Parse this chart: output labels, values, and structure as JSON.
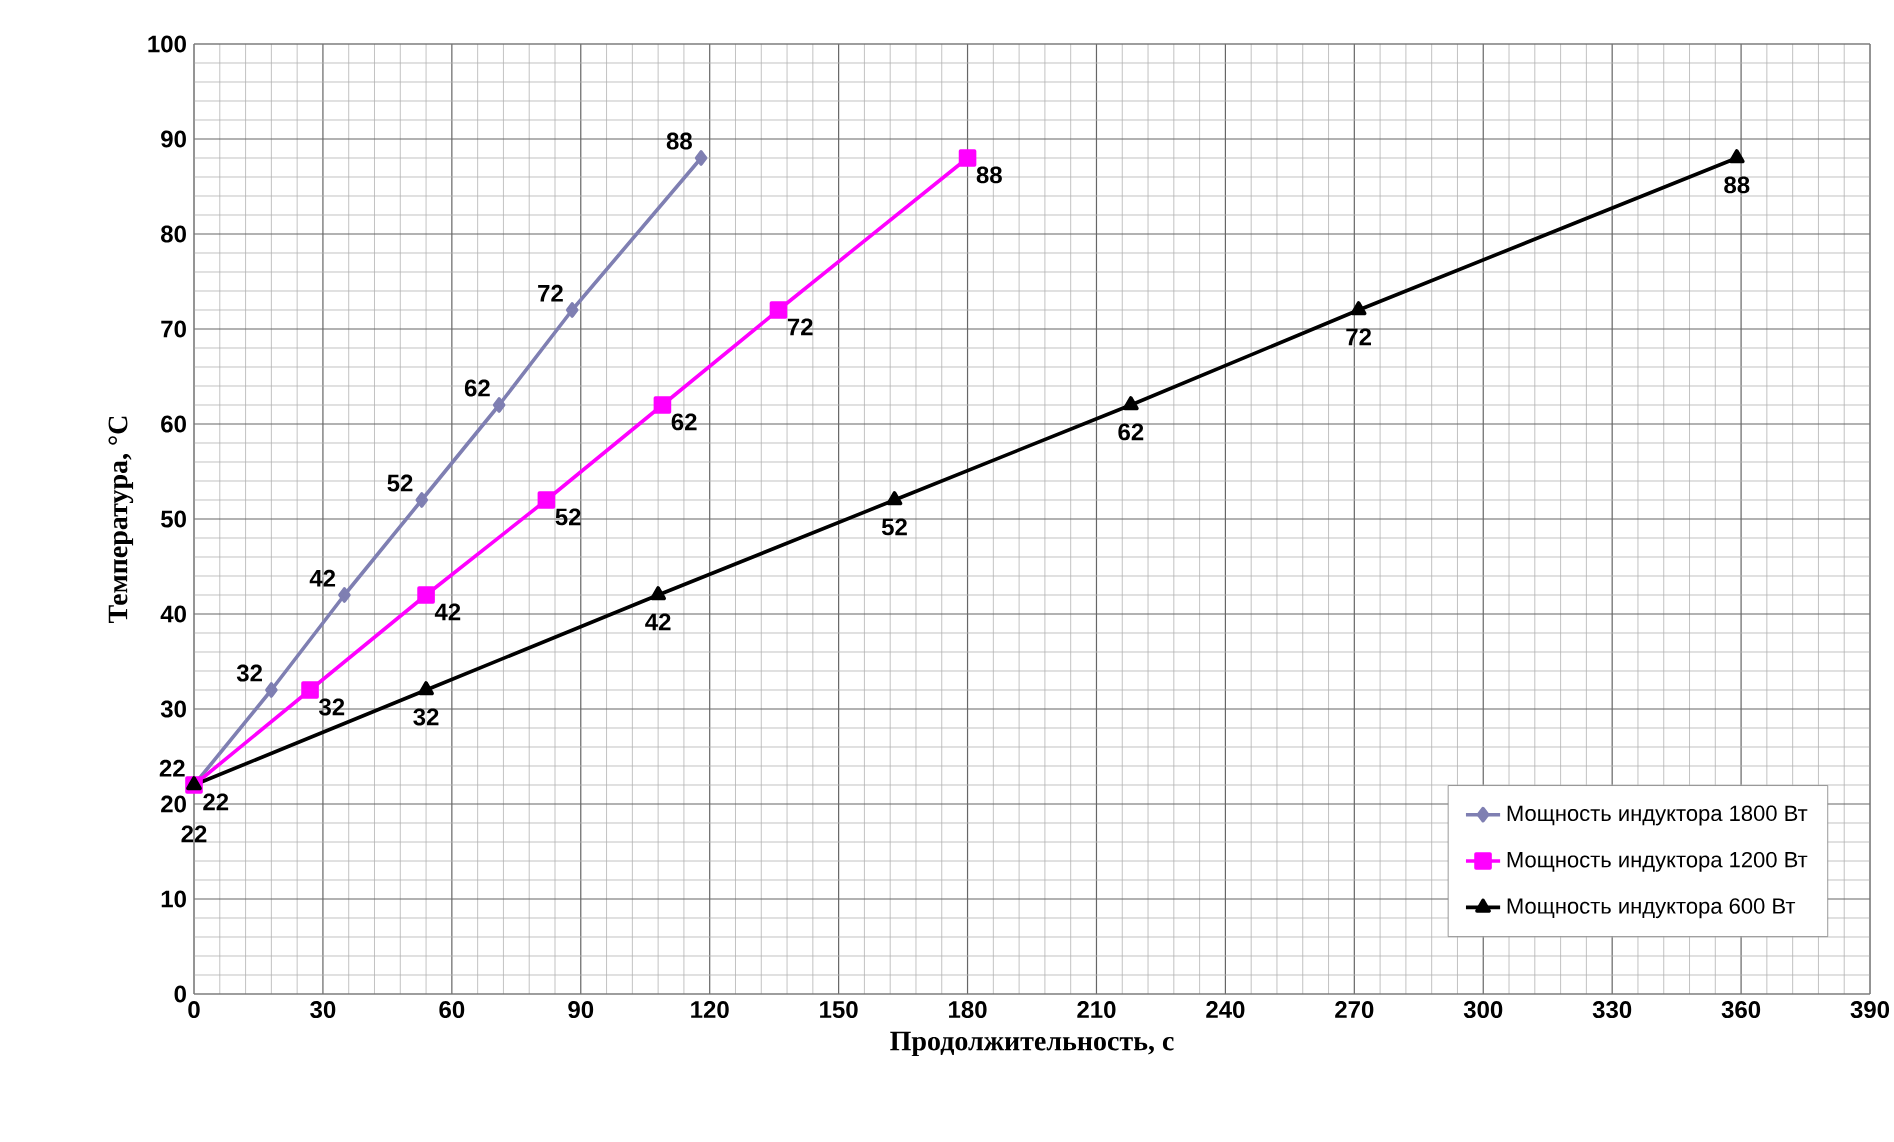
{
  "chart_data": {
    "type": "line",
    "xlabel": "Продолжительность, с",
    "ylabel": "Температура, °С",
    "xlim": [
      0,
      390
    ],
    "ylim": [
      0,
      100
    ],
    "xticks": [
      0,
      30,
      60,
      90,
      120,
      150,
      180,
      210,
      240,
      270,
      300,
      330,
      360,
      390
    ],
    "yticks": [
      0,
      10,
      20,
      30,
      40,
      50,
      60,
      70,
      80,
      90,
      100
    ],
    "grid": true,
    "legend": "bottom right",
    "data_labels": true,
    "series": [
      {
        "name": "Мощность индуктора 1800 Вт",
        "color": "#7f7fb2",
        "marker": "diamond",
        "x": [
          0,
          18,
          35,
          53,
          71,
          88,
          118
        ],
        "values": [
          22,
          32,
          42,
          52,
          62,
          72,
          88
        ]
      },
      {
        "name": "Мощность индуктора 1200 Вт",
        "color": "#ff00ff",
        "marker": "square",
        "x": [
          0,
          27,
          54,
          82,
          109,
          136,
          180
        ],
        "values": [
          22,
          32,
          42,
          52,
          62,
          72,
          88
        ]
      },
      {
        "name": "Мощность индуктора 600 Вт",
        "color": "#000000",
        "marker": "triangle",
        "x": [
          0,
          54,
          108,
          163,
          218,
          271,
          359
        ],
        "values": [
          22,
          32,
          42,
          52,
          62,
          72,
          88
        ]
      }
    ]
  }
}
